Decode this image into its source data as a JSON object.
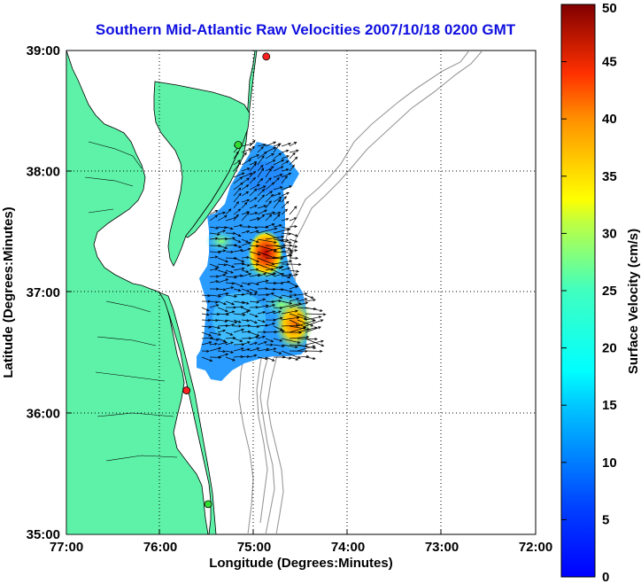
{
  "title": "Southern Mid-Atlantic Raw Velocities 2007/10/18 0200 GMT",
  "x_axis": {
    "label": "Longitude (Degrees:Minutes)",
    "ticks": [
      "77:00",
      "76:00",
      "75:00",
      "74:00",
      "73:00",
      "72:00"
    ]
  },
  "y_axis": {
    "label": "Latitude (Degrees:Minutes)",
    "ticks": [
      "39:00",
      "38:00",
      "37:00",
      "36:00",
      "35:00"
    ]
  },
  "colorbar": {
    "label": "Surface Velocity (cm/s)",
    "ticks": [
      "50",
      "45",
      "40",
      "35",
      "30",
      "25",
      "20",
      "15",
      "10",
      "5",
      "0"
    ],
    "min": 0,
    "max": 50,
    "colormap": "jet"
  },
  "map": {
    "lon_range": [
      -77,
      -72
    ],
    "lat_range": [
      35,
      39
    ],
    "grid": "dotted",
    "land_color": "#5ef2a8",
    "station_markers": [
      {
        "lon": -74.87,
        "lat": 38.95,
        "color": "#ff2020"
      },
      {
        "lon": -75.17,
        "lat": 38.22,
        "color": "#33dd33"
      },
      {
        "lon": -75.72,
        "lat": 36.19,
        "color": "#ff2020"
      },
      {
        "lon": -75.49,
        "lat": 35.25,
        "color": "#33dd33"
      }
    ]
  }
}
